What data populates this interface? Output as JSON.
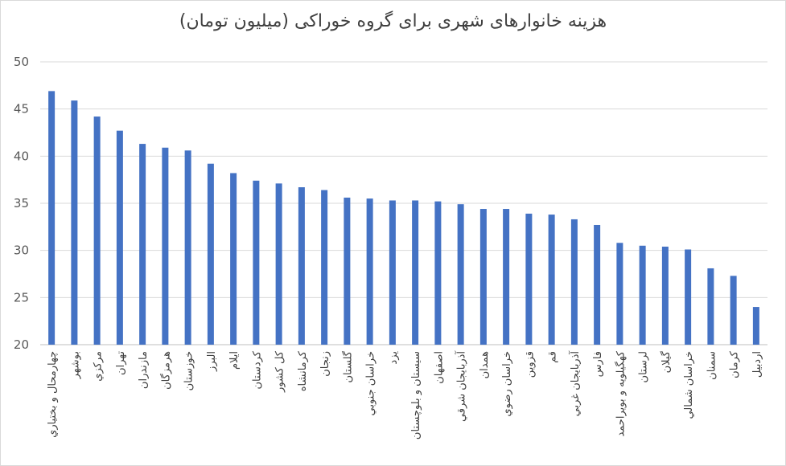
{
  "chart_data": {
    "type": "bar",
    "title": "هزینه خانوارهای شهری برای گروه خوراکی  (میلیون تومان)",
    "xlabel": "",
    "ylabel": "",
    "ylim": [
      20,
      50
    ],
    "yticks": [
      20,
      25,
      30,
      35,
      40,
      45,
      50
    ],
    "grid": true,
    "legend": "none",
    "bar_color": "#4472C4",
    "categories": [
      "چهارمحال و بختیاري",
      "بوشهر",
      "مركزي",
      "تهران",
      "مازندران",
      "هرمزگان",
      "خوزستان",
      "البرز",
      "ايلام",
      "كردستان",
      "كل كشور",
      "كرمانشاه",
      "زنجان",
      "گلستان",
      "خراسان جنوبي",
      "يزد",
      "سيستان و بلوچستان",
      "اصفهان",
      "آذربايجان شرقي",
      "همدان",
      "خراسان رضوي",
      "قزوين",
      "قم",
      "آذربايجان غربي",
      "فارس",
      "كهگيلويه و بويراحمد",
      "لرستان",
      "گيلان",
      "خراسان شمالي",
      "سمنان",
      "كرمان",
      "اردبيل"
    ],
    "values": [
      46.9,
      45.9,
      44.2,
      42.7,
      41.3,
      40.9,
      40.6,
      39.2,
      38.2,
      37.4,
      37.1,
      36.7,
      36.4,
      35.6,
      35.5,
      35.3,
      35.3,
      35.2,
      34.9,
      34.4,
      34.4,
      33.9,
      33.8,
      33.3,
      32.7,
      30.8,
      30.5,
      30.4,
      30.1,
      28.1,
      27.3,
      24.0
    ]
  }
}
